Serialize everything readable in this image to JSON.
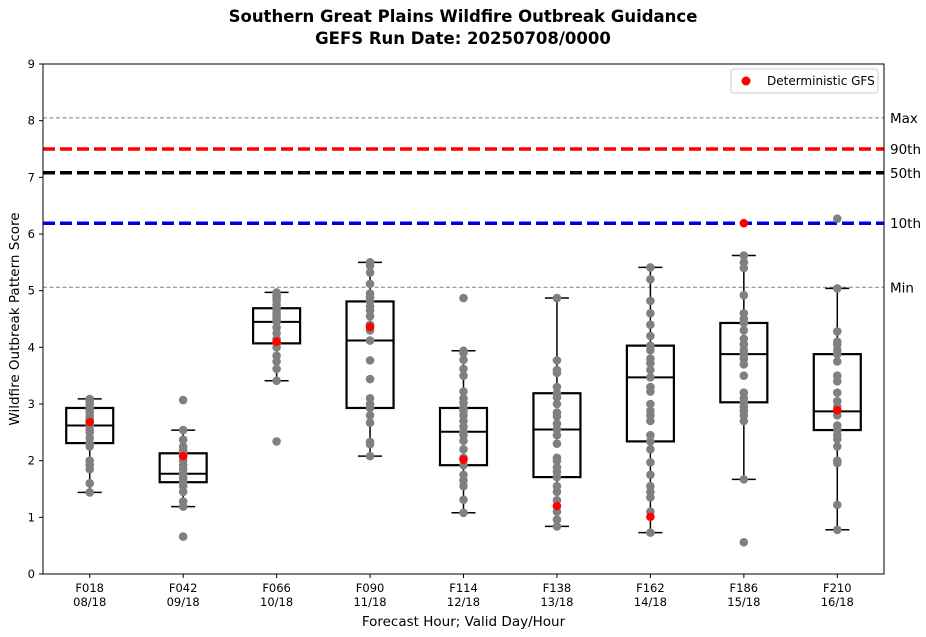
{
  "title_line1": "Southern Great Plains Wildfire Outbreak Guidance",
  "title_line2": "GEFS Run Date: 20250708/0000",
  "chart_data": {
    "type": "box",
    "xlabel": "Forecast Hour; Valid Day/Hour",
    "ylabel": "Wildfire Outbreak Pattern Score",
    "ylim": [
      0,
      9
    ],
    "yticks": [
      "0",
      "1",
      "2",
      "3",
      "4",
      "5",
      "6",
      "7",
      "8",
      "9"
    ],
    "categories": [
      {
        "hour": "F018",
        "valid": "08/18"
      },
      {
        "hour": "F042",
        "valid": "09/18"
      },
      {
        "hour": "F066",
        "valid": "10/18"
      },
      {
        "hour": "F090",
        "valid": "11/18"
      },
      {
        "hour": "F114",
        "valid": "12/18"
      },
      {
        "hour": "F138",
        "valid": "13/18"
      },
      {
        "hour": "F162",
        "valid": "14/18"
      },
      {
        "hour": "F186",
        "valid": "15/18"
      },
      {
        "hour": "F210",
        "valid": "16/18"
      }
    ],
    "boxes": [
      {
        "whislo": 1.44,
        "q1": 2.31,
        "med": 2.62,
        "q3": 2.93,
        "whishi": 3.09
      },
      {
        "whislo": 1.19,
        "q1": 1.62,
        "med": 1.77,
        "q3": 2.13,
        "whishi": 2.54
      },
      {
        "whislo": 3.41,
        "q1": 4.07,
        "med": 4.45,
        "q3": 4.69,
        "whishi": 4.97
      },
      {
        "whislo": 2.08,
        "q1": 2.93,
        "med": 4.12,
        "q3": 4.81,
        "whishi": 5.5
      },
      {
        "whislo": 1.08,
        "q1": 1.92,
        "med": 2.51,
        "q3": 2.93,
        "whishi": 3.94
      },
      {
        "whislo": 0.84,
        "q1": 1.71,
        "med": 2.55,
        "q3": 3.19,
        "whishi": 4.87
      },
      {
        "whislo": 0.73,
        "q1": 2.34,
        "med": 3.47,
        "q3": 4.03,
        "whishi": 5.41
      },
      {
        "whislo": 1.67,
        "q1": 3.03,
        "med": 3.88,
        "q3": 4.43,
        "whishi": 5.62
      },
      {
        "whislo": 0.78,
        "q1": 2.54,
        "med": 2.87,
        "q3": 3.88,
        "whishi": 5.04
      }
    ],
    "members": [
      [
        1.44,
        1.6,
        1.85,
        1.92,
        2.0,
        2.25,
        2.31,
        2.4,
        2.5,
        2.55,
        2.62,
        2.68,
        2.72,
        2.78,
        2.85,
        2.9,
        2.93,
        3.0,
        3.05,
        3.09
      ],
      [
        0.66,
        1.19,
        1.28,
        1.45,
        1.55,
        1.62,
        1.66,
        1.7,
        1.77,
        1.85,
        1.92,
        2.0,
        2.1,
        2.13,
        2.18,
        2.25,
        2.37,
        2.54,
        3.07
      ],
      [
        2.34,
        3.41,
        3.62,
        3.75,
        3.85,
        4.0,
        4.07,
        4.15,
        4.25,
        4.35,
        4.45,
        4.5,
        4.55,
        4.6,
        4.65,
        4.69,
        4.75,
        4.82,
        4.87,
        4.92,
        4.97
      ],
      [
        2.08,
        2.29,
        2.33,
        2.67,
        2.8,
        2.93,
        3.0,
        3.1,
        3.44,
        3.77,
        4.12,
        4.3,
        4.4,
        4.55,
        4.65,
        4.72,
        4.81,
        4.88,
        4.95,
        5.12,
        5.32,
        5.44,
        5.5
      ],
      [
        1.08,
        1.31,
        1.55,
        1.65,
        1.75,
        1.92,
        2.05,
        2.2,
        2.35,
        2.45,
        2.51,
        2.6,
        2.7,
        2.8,
        2.88,
        2.93,
        3.02,
        3.1,
        3.22,
        3.5,
        3.62,
        3.78,
        3.9,
        3.94,
        4.87
      ],
      [
        0.84,
        0.96,
        1.1,
        1.3,
        1.45,
        1.55,
        1.71,
        1.8,
        1.88,
        2.0,
        2.05,
        2.3,
        2.45,
        2.55,
        2.65,
        2.78,
        2.85,
        3.0,
        3.12,
        3.19,
        3.3,
        3.55,
        3.6,
        3.77,
        4.87
      ],
      [
        0.73,
        1.1,
        1.35,
        1.45,
        1.55,
        1.75,
        1.97,
        2.2,
        2.34,
        2.45,
        2.7,
        2.8,
        2.88,
        3.0,
        3.22,
        3.3,
        3.47,
        3.6,
        3.72,
        3.8,
        3.95,
        4.03,
        4.2,
        4.4,
        4.6,
        4.82,
        5.2,
        5.41
      ],
      [
        0.56,
        1.67,
        2.7,
        2.8,
        2.88,
        2.95,
        3.03,
        3.1,
        3.2,
        3.5,
        3.7,
        3.8,
        3.88,
        3.95,
        4.05,
        4.15,
        4.3,
        4.43,
        4.5,
        4.6,
        4.92,
        5.4,
        5.5,
        5.62
      ],
      [
        0.78,
        1.22,
        1.96,
        2.0,
        2.25,
        2.38,
        2.45,
        2.54,
        2.62,
        2.8,
        2.87,
        2.95,
        3.05,
        3.2,
        3.4,
        3.5,
        3.75,
        3.88,
        3.95,
        4.05,
        4.1,
        4.28,
        5.04,
        6.27
      ]
    ],
    "deterministic": {
      "name": "Deterministic GFS",
      "color": "#ff0000",
      "values": [
        2.68,
        2.08,
        4.1,
        4.36,
        2.02,
        1.2,
        1.01,
        6.19,
        2.89
      ]
    },
    "reference_lines": [
      {
        "label": "Max",
        "value": 8.05,
        "color": "#808080",
        "style": "thin-dashed"
      },
      {
        "label": "90th",
        "value": 7.5,
        "color": "#ff0000",
        "style": "thick-dashed"
      },
      {
        "label": "50th",
        "value": 7.08,
        "color": "#000000",
        "style": "thick-dashed"
      },
      {
        "label": "10th",
        "value": 6.19,
        "color": "#0000dd",
        "style": "thick-dashed"
      },
      {
        "label": "Min",
        "value": 5.06,
        "color": "#808080",
        "style": "thin-dashed"
      }
    ],
    "member_color": "#808080",
    "legend_position": "top-right",
    "grid": false
  }
}
